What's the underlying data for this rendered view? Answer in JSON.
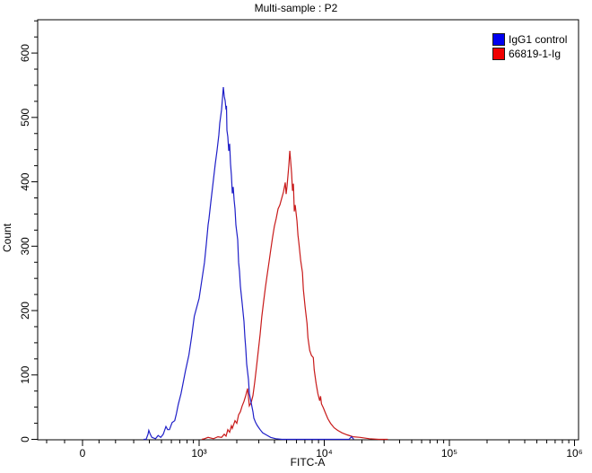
{
  "title": "Multi-sample : P2",
  "legend": [
    {
      "label": "IgG1 control",
      "swatch_color": "#0000f0"
    },
    {
      "label": "66819-1-Ig",
      "swatch_color": "#f00000"
    }
  ],
  "axes": {
    "x": {
      "label": "FITC-A",
      "scale": "logicle",
      "major_ticks": [
        {
          "value": 0,
          "label": "0"
        },
        {
          "value": 1000,
          "label": "10³"
        },
        {
          "value": 10000,
          "label": "10⁴"
        },
        {
          "value": 100000,
          "label": "10⁵"
        },
        {
          "value": 1000000,
          "label": "10⁶"
        }
      ],
      "minor_tick_values": [
        -200,
        -100,
        100,
        200,
        300,
        400,
        500,
        600,
        700,
        800,
        900,
        2000,
        3000,
        4000,
        5000,
        6000,
        7000,
        8000,
        9000,
        20000,
        30000,
        40000,
        50000,
        60000,
        70000,
        80000,
        90000,
        200000,
        300000,
        400000,
        500000,
        600000,
        700000,
        800000,
        900000
      ]
    },
    "y": {
      "label": "Count",
      "min": 0,
      "max": 650,
      "major_ticks": [
        {
          "value": 0,
          "label": "0"
        },
        {
          "value": 100,
          "label": "100"
        },
        {
          "value": 200,
          "label": "200"
        },
        {
          "value": 300,
          "label": "300"
        },
        {
          "value": 400,
          "label": "400"
        },
        {
          "value": 500,
          "label": "500"
        },
        {
          "value": 600,
          "label": "600"
        }
      ],
      "minor_tick_step": 25
    }
  },
  "chart_data": {
    "type": "line",
    "title": "Multi-sample : P2",
    "xlabel": "FITC-A",
    "ylabel": "Count",
    "xlim": [
      0,
      1000000
    ],
    "ylim": [
      0,
      650
    ],
    "grid": false,
    "legend_position": "top-right",
    "series": [
      {
        "name": "IgG1 control",
        "color": "#1f1fc8",
        "peak": {
          "x": 1560,
          "y": 547
        },
        "points": [
          [
            360,
            0
          ],
          [
            377,
            0
          ],
          [
            390,
            8
          ],
          [
            396,
            14
          ],
          [
            407,
            8
          ],
          [
            419,
            3
          ],
          [
            448,
            1
          ],
          [
            470,
            6
          ],
          [
            493,
            3
          ],
          [
            517,
            8
          ],
          [
            543,
            20
          ],
          [
            560,
            15
          ],
          [
            579,
            15
          ],
          [
            608,
            26
          ],
          [
            638,
            29
          ],
          [
            659,
            40
          ],
          [
            681,
            54
          ],
          [
            716,
            71
          ],
          [
            740,
            85
          ],
          [
            777,
            106
          ],
          [
            829,
            131
          ],
          [
            870,
            159
          ],
          [
            914,
            191
          ],
          [
            1000,
            219
          ],
          [
            1051,
            247
          ],
          [
            1104,
            275
          ],
          [
            1141,
            303
          ],
          [
            1179,
            333
          ],
          [
            1199,
            343
          ],
          [
            1239,
            368
          ],
          [
            1280,
            392
          ],
          [
            1346,
            428
          ],
          [
            1391,
            449
          ],
          [
            1438,
            473
          ],
          [
            1462,
            491
          ],
          [
            1511,
            512
          ],
          [
            1536,
            529
          ],
          [
            1562,
            547
          ],
          [
            1588,
            533
          ],
          [
            1614,
            526
          ],
          [
            1641,
            512
          ],
          [
            1655,
            518
          ],
          [
            1668,
            480
          ],
          [
            1696,
            470
          ],
          [
            1724,
            448
          ],
          [
            1753,
            459
          ],
          [
            1782,
            428
          ],
          [
            1812,
            410
          ],
          [
            1842,
            382
          ],
          [
            1873,
            392
          ],
          [
            1904,
            372
          ],
          [
            1936,
            358
          ],
          [
            1968,
            333
          ],
          [
            2034,
            310
          ],
          [
            2068,
            275
          ],
          [
            2102,
            261
          ],
          [
            2137,
            238
          ],
          [
            2209,
            211
          ],
          [
            2283,
            183
          ],
          [
            2321,
            159
          ],
          [
            2359,
            141
          ],
          [
            2399,
            117
          ],
          [
            2479,
            93
          ],
          [
            2520,
            71
          ],
          [
            2605,
            57
          ],
          [
            2692,
            43
          ],
          [
            2737,
            33
          ],
          [
            2828,
            26
          ],
          [
            2923,
            21
          ],
          [
            3070,
            15
          ],
          [
            3225,
            10
          ],
          [
            3439,
            7
          ],
          [
            3725,
            3
          ],
          [
            4098,
            1
          ],
          [
            4591,
            0
          ],
          [
            15800,
            0
          ],
          [
            16500,
            4
          ],
          [
            17200,
            0
          ]
        ]
      },
      {
        "name": "66819-1-Ig",
        "color": "#c81a1a",
        "peak": {
          "x": 5300,
          "y": 448
        },
        "points": [
          [
            1051,
            0
          ],
          [
            1104,
            1
          ],
          [
            1179,
            3
          ],
          [
            1302,
            1
          ],
          [
            1414,
            4
          ],
          [
            1511,
            3
          ],
          [
            1588,
            8
          ],
          [
            1641,
            5
          ],
          [
            1696,
            15
          ],
          [
            1753,
            11
          ],
          [
            1812,
            21
          ],
          [
            1842,
            17
          ],
          [
            1936,
            29
          ],
          [
            2001,
            25
          ],
          [
            2068,
            38
          ],
          [
            2137,
            43
          ],
          [
            2209,
            52
          ],
          [
            2283,
            59
          ],
          [
            2359,
            68
          ],
          [
            2438,
            79
          ],
          [
            2520,
            52
          ],
          [
            2605,
            57
          ],
          [
            2692,
            68
          ],
          [
            2783,
            89
          ],
          [
            2876,
            113
          ],
          [
            2971,
            138
          ],
          [
            3070,
            163
          ],
          [
            3172,
            191
          ],
          [
            3278,
            214
          ],
          [
            3388,
            236
          ],
          [
            3502,
            256
          ],
          [
            3619,
            275
          ],
          [
            3741,
            295
          ],
          [
            3867,
            314
          ],
          [
            3997,
            331
          ],
          [
            4131,
            343
          ],
          [
            4271,
            358
          ],
          [
            4414,
            364
          ],
          [
            4562,
            374
          ],
          [
            4715,
            384
          ],
          [
            4880,
            399
          ],
          [
            4961,
            381
          ],
          [
            5044,
            393
          ],
          [
            5128,
            409
          ],
          [
            5214,
            425
          ],
          [
            5302,
            448
          ],
          [
            5391,
            431
          ],
          [
            5482,
            413
          ],
          [
            5574,
            386
          ],
          [
            5668,
            397
          ],
          [
            5763,
            354
          ],
          [
            5860,
            364
          ],
          [
            6059,
            339
          ],
          [
            6161,
            317
          ],
          [
            6264,
            305
          ],
          [
            6477,
            278
          ],
          [
            6697,
            259
          ],
          [
            6809,
            233
          ],
          [
            7041,
            205
          ],
          [
            7281,
            180
          ],
          [
            7403,
            158
          ],
          [
            7654,
            138
          ],
          [
            7913,
            130
          ],
          [
            8181,
            127
          ],
          [
            8318,
            108
          ],
          [
            8600,
            87
          ],
          [
            8892,
            71
          ],
          [
            9194,
            60
          ],
          [
            9350,
            67
          ],
          [
            9508,
            55
          ],
          [
            9829,
            49
          ],
          [
            10160,
            42
          ],
          [
            10680,
            32
          ],
          [
            11230,
            25
          ],
          [
            12000,
            18
          ],
          [
            12810,
            14
          ],
          [
            13890,
            10
          ],
          [
            15230,
            7
          ],
          [
            17000,
            4
          ],
          [
            19340,
            3
          ],
          [
            22930,
            1
          ],
          [
            27190,
            0
          ],
          [
            32240,
            0
          ]
        ]
      }
    ]
  }
}
